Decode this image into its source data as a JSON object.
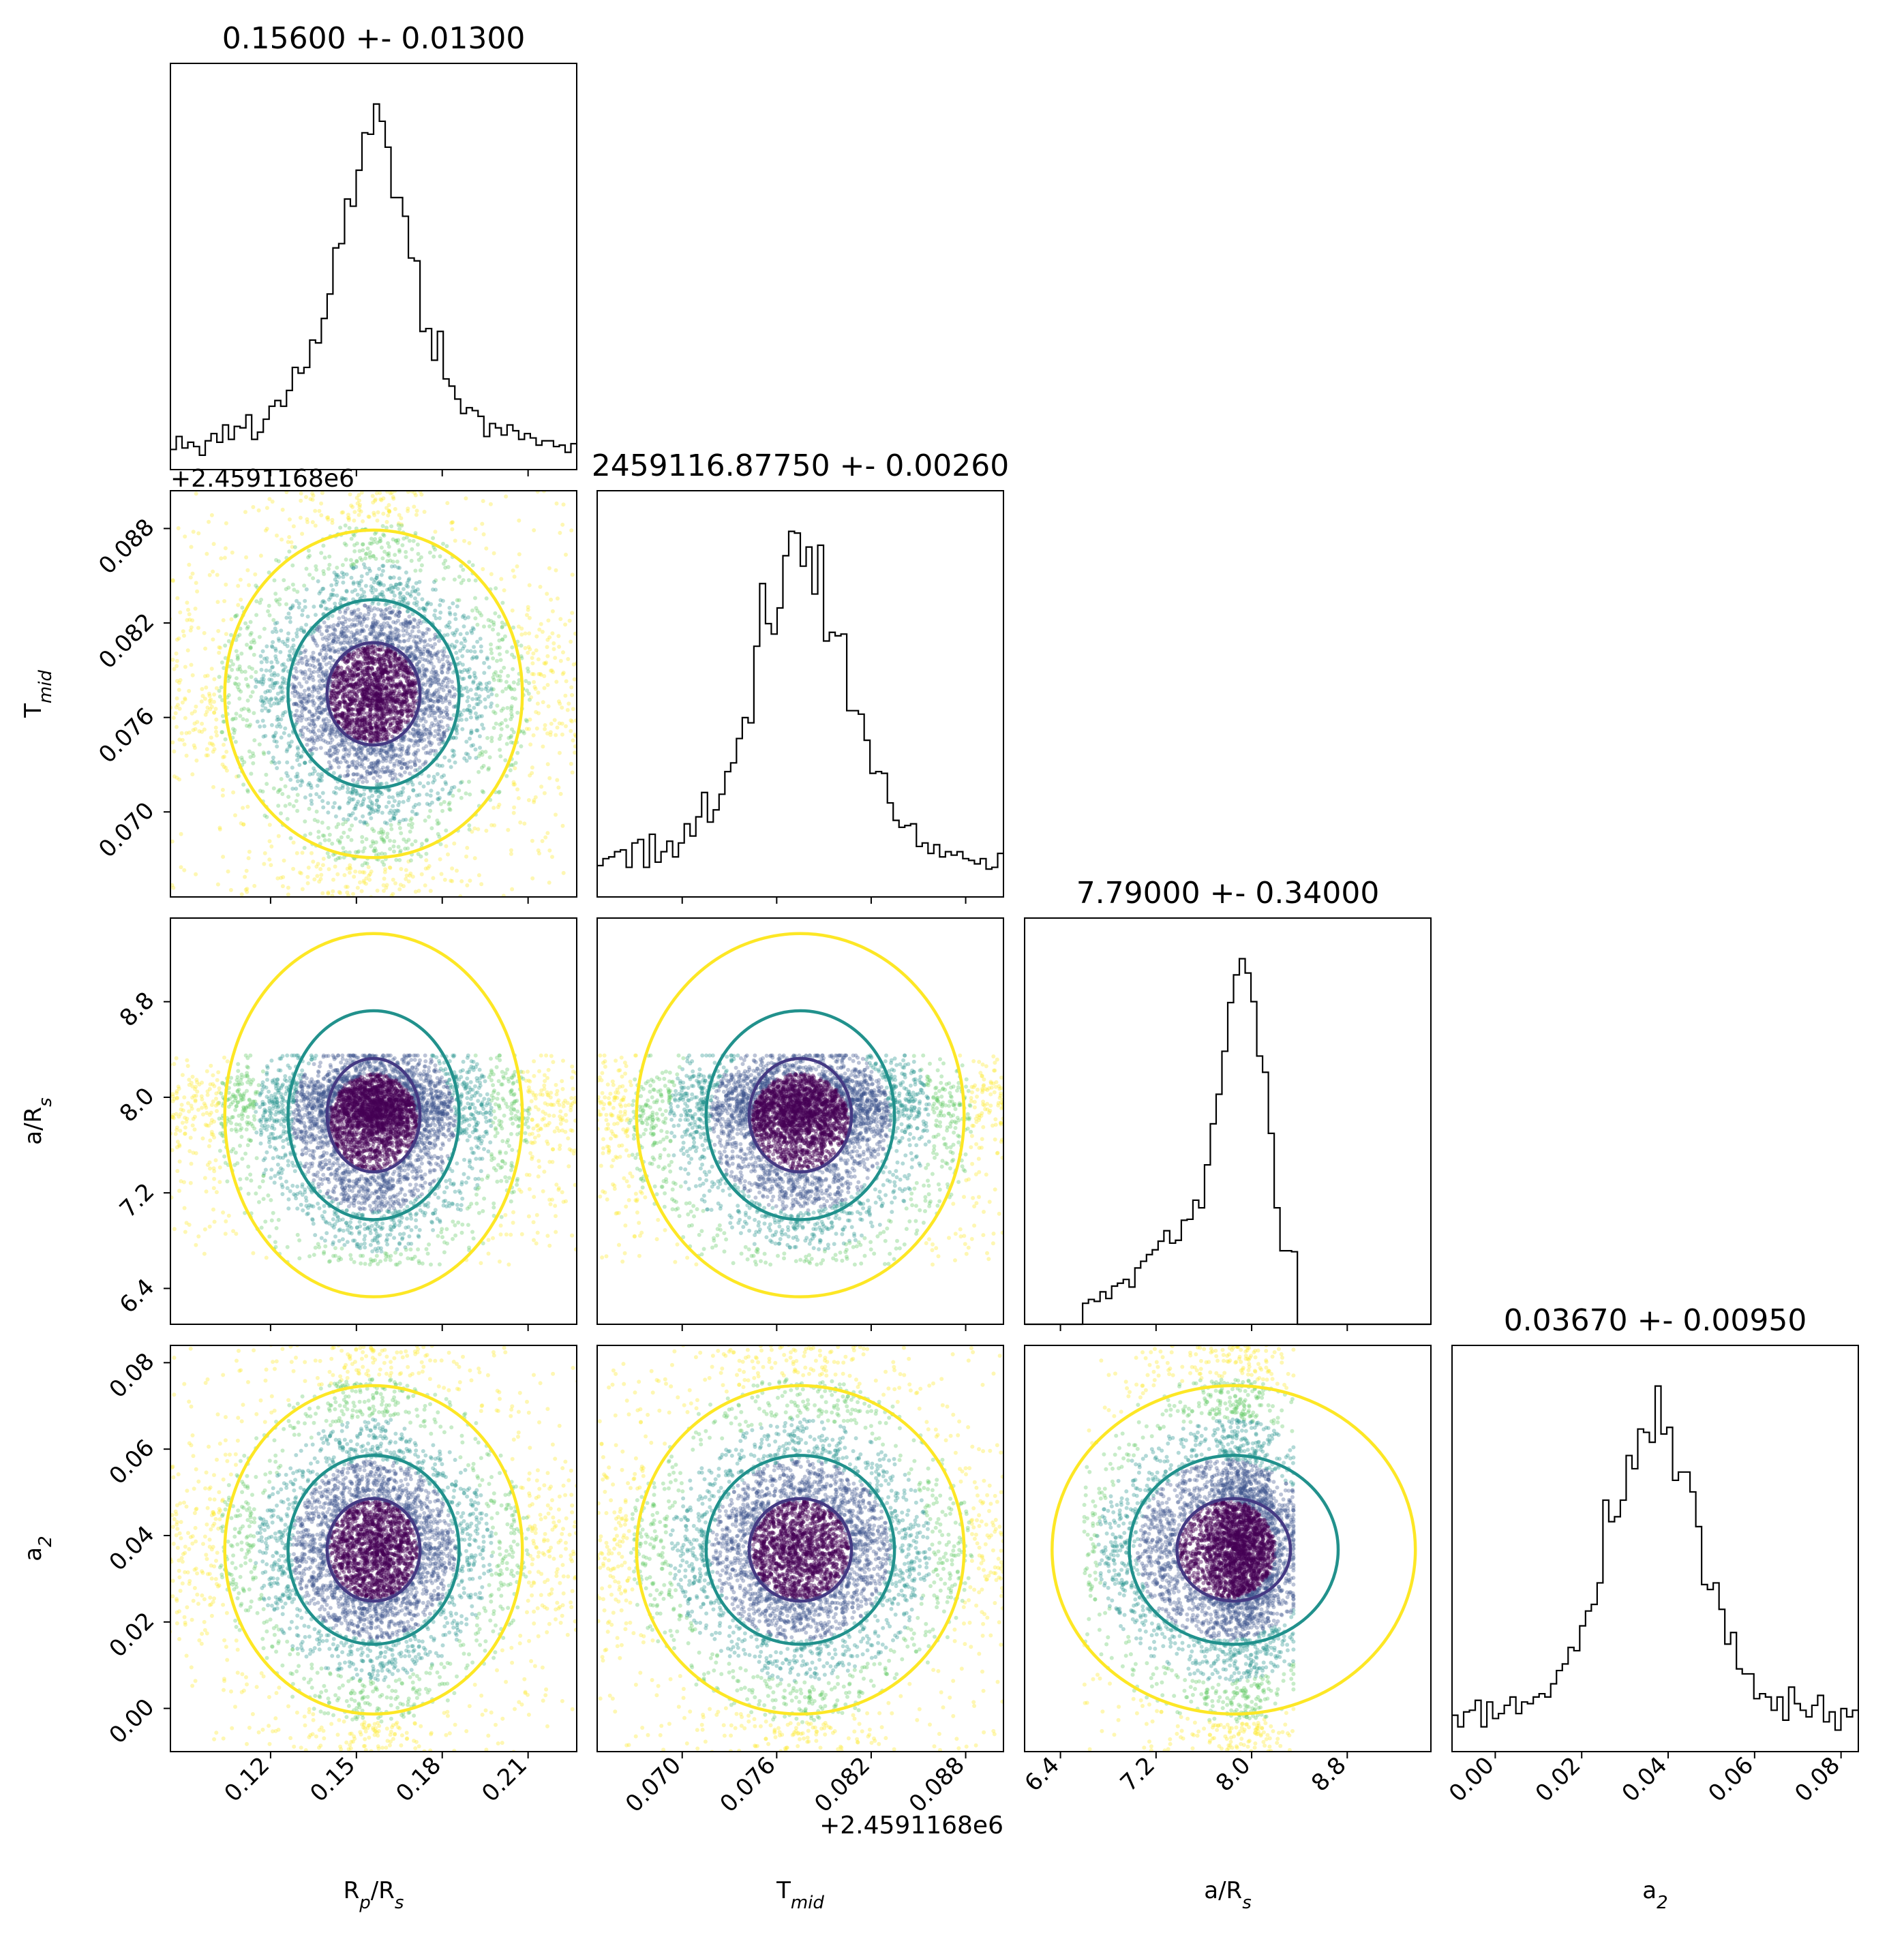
{
  "figure": "corner-plot",
  "chart_data": {
    "type": "scatter",
    "parameters": [
      {
        "key": "rprs",
        "label": "R_p/R_s",
        "title": "0.15600 +- 0.01300",
        "center": 0.156,
        "sigma": 0.013,
        "range": [
          0.085,
          0.227
        ],
        "ticks": [
          0.12,
          0.15,
          0.18,
          0.21
        ],
        "tick_labels": [
          "0.12",
          "0.15",
          "0.18",
          "0.21"
        ]
      },
      {
        "key": "tmid",
        "label": "T_mid",
        "title": "2459116.87750 +- 0.00260",
        "center": 0.0775,
        "sigma": 0.0026,
        "range": [
          0.0646,
          0.0904
        ],
        "ticks": [
          0.07,
          0.076,
          0.082,
          0.088
        ],
        "tick_labels": [
          "0.070",
          "0.076",
          "0.082",
          "0.088"
        ],
        "offset_text": "+2.4591168e6"
      },
      {
        "key": "ars",
        "label": "a/R_s",
        "title": "7.79000 +- 0.34000",
        "center": 7.79,
        "sigma": 0.34,
        "range": [
          6.1,
          9.5
        ],
        "ticks": [
          6.4,
          7.2,
          8.0,
          8.8
        ],
        "tick_labels": [
          "6.4",
          "7.2",
          "8.0",
          "8.8"
        ],
        "bounds": [
          6.6,
          8.35
        ]
      },
      {
        "key": "a2",
        "label": "a_2",
        "title": "0.03670 +- 0.00950",
        "center": 0.0367,
        "sigma": 0.0095,
        "range": [
          -0.01,
          0.084
        ],
        "ticks": [
          0.0,
          0.02,
          0.04,
          0.06,
          0.08
        ],
        "tick_labels": [
          "0.00",
          "0.02",
          "0.04",
          "0.06",
          "0.08"
        ]
      }
    ],
    "contour_levels": [
      {
        "name": "inner",
        "color": "#443983"
      },
      {
        "name": "middle",
        "color": "#21918c"
      },
      {
        "name": "outer",
        "color": "#fde725"
      }
    ],
    "point_colors": [
      "#440154",
      "#3b528b",
      "#21918c",
      "#5ec962",
      "#fde725"
    ]
  }
}
